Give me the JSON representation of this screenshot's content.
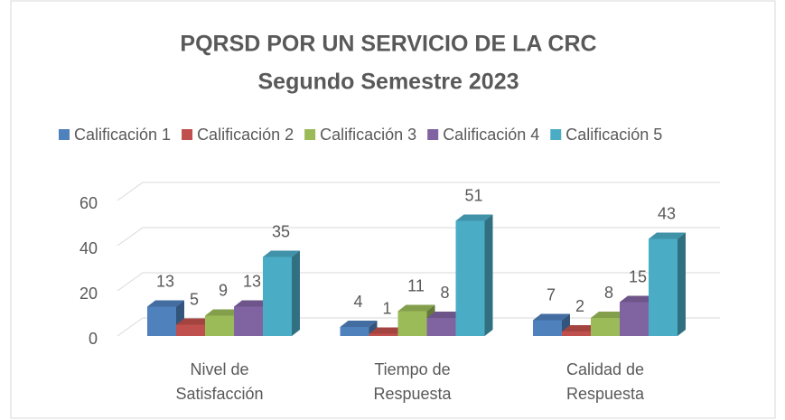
{
  "chart_data": {
    "type": "bar3d",
    "title": "PQRSD POR UN SERVICIO DE LA CRC",
    "subtitle": "Segundo Semestre 2023",
    "categories": [
      "Nivel de Satisfacción",
      "Tiempo de Respuesta",
      "Calidad de Respuesta"
    ],
    "series": [
      {
        "name": "Calificación 1",
        "color": "#4f81bd",
        "values": [
          13,
          4,
          7
        ]
      },
      {
        "name": "Calificación 2",
        "color": "#c0504d",
        "values": [
          5,
          1,
          2
        ]
      },
      {
        "name": "Calificación 3",
        "color": "#9bbb59",
        "values": [
          9,
          11,
          8
        ]
      },
      {
        "name": "Calificación 4",
        "color": "#8064a2",
        "values": [
          13,
          8,
          15
        ]
      },
      {
        "name": "Calificación 5",
        "color": "#4bacc6",
        "values": [
          35,
          51,
          43
        ]
      }
    ],
    "ylim": [
      0,
      60
    ],
    "yticks": [
      0,
      20,
      40,
      60
    ],
    "grid": true,
    "legend": "top"
  }
}
